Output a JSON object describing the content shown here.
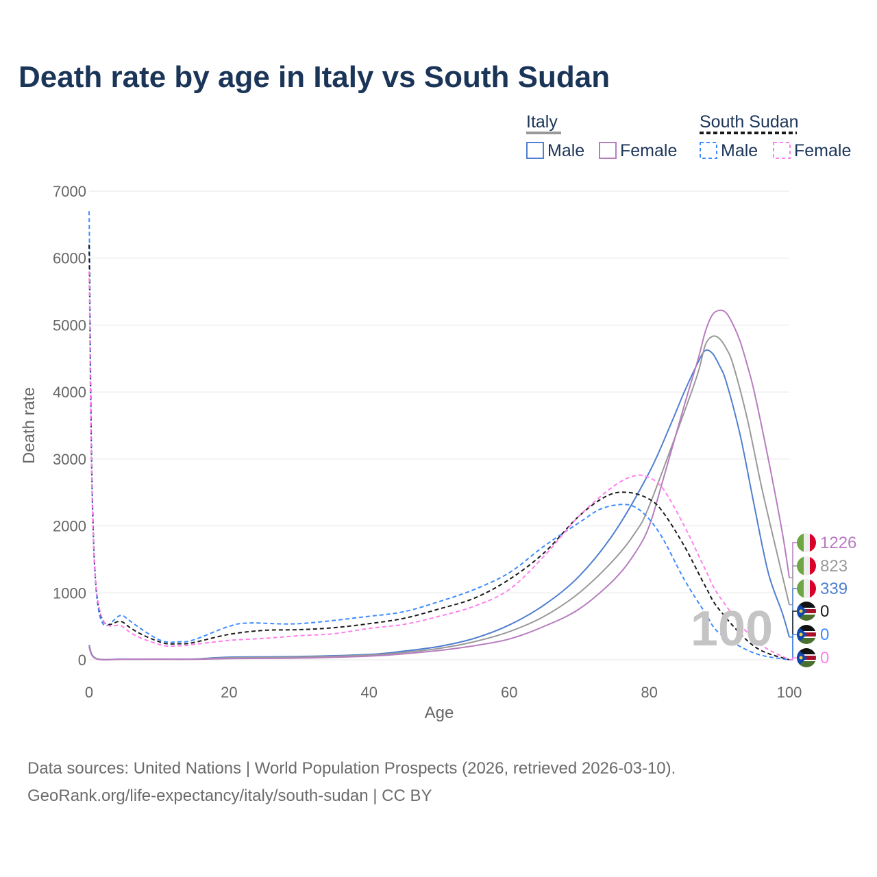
{
  "title": "Death rate by age in Italy vs South Sudan",
  "footer": {
    "line1": "Data sources: United Nations | World Population Prospects (2026, retrieved 2026-03-10).",
    "line2": "GeoRank.org/life-expectancy/italy/south-sudan | CC BY"
  },
  "legend": {
    "groups": [
      {
        "label": "Italy",
        "items": [
          "Male",
          "Female"
        ]
      },
      {
        "label": "South Sudan",
        "items": [
          "Male",
          "Female"
        ]
      }
    ]
  },
  "watermark_age": "100",
  "chart_data": {
    "type": "line",
    "title": "Death rate by age in Italy vs South Sudan",
    "xlabel": "Age",
    "ylabel": "Death rate",
    "xlim": [
      0,
      100
    ],
    "ylim": [
      0,
      7000
    ],
    "xticks": [
      "0",
      "20",
      "40",
      "60",
      "80",
      "100"
    ],
    "yticks": [
      "0",
      "1000",
      "2000",
      "3000",
      "4000",
      "5000",
      "6000",
      "7000"
    ],
    "grid": true,
    "series": [
      {
        "name": "Italy Male",
        "color": "#4f7fcf",
        "dash": false,
        "end_label": "339",
        "x": [
          0,
          1,
          5,
          10,
          15,
          20,
          30,
          40,
          45,
          50,
          55,
          60,
          65,
          70,
          75,
          80,
          83,
          85,
          87,
          88,
          89,
          90,
          91,
          93,
          95,
          97,
          99,
          100
        ],
        "y": [
          220,
          20,
          10,
          10,
          12,
          40,
          50,
          80,
          130,
          200,
          320,
          520,
          820,
          1250,
          1900,
          2800,
          3500,
          4000,
          4450,
          4620,
          4580,
          4400,
          4150,
          3350,
          2300,
          1300,
          700,
          339
        ]
      },
      {
        "name": "Italy Total",
        "color": "#999999",
        "dash": false,
        "end_label": "823",
        "x": [
          0,
          1,
          5,
          10,
          15,
          20,
          30,
          40,
          45,
          50,
          55,
          60,
          65,
          70,
          75,
          78,
          80,
          85,
          87,
          88,
          89,
          90,
          91,
          92,
          94,
          96,
          98,
          100
        ],
        "y": [
          200,
          18,
          9,
          9,
          10,
          30,
          40,
          70,
          110,
          170,
          270,
          420,
          650,
          1000,
          1500,
          1900,
          2300,
          3700,
          4300,
          4700,
          4830,
          4800,
          4650,
          4400,
          3600,
          2600,
          1700,
          823
        ]
      },
      {
        "name": "Italy Female",
        "color": "#b77cbf",
        "dash": false,
        "end_label": "1226",
        "x": [
          0,
          1,
          5,
          10,
          15,
          20,
          30,
          40,
          45,
          50,
          55,
          60,
          65,
          70,
          75,
          78,
          80,
          82,
          85,
          87,
          88,
          89,
          90,
          91,
          92,
          93,
          94,
          95,
          97,
          99,
          100
        ],
        "y": [
          190,
          16,
          8,
          8,
          8,
          18,
          25,
          55,
          90,
          140,
          210,
          310,
          500,
          760,
          1200,
          1600,
          2000,
          2700,
          3800,
          4500,
          4900,
          5150,
          5220,
          5180,
          5000,
          4750,
          4400,
          4000,
          3000,
          1900,
          1226
        ]
      },
      {
        "name": "South Sudan Male",
        "color": "#3d8bff",
        "dash": true,
        "end_label": "0",
        "x": [
          0,
          1,
          5,
          10,
          13,
          15,
          20,
          23,
          30,
          40,
          45,
          50,
          55,
          60,
          65,
          70,
          73,
          76,
          78,
          80,
          82,
          85,
          88,
          90,
          95,
          100
        ],
        "y": [
          6700,
          1050,
          650,
          300,
          270,
          300,
          500,
          550,
          540,
          650,
          720,
          870,
          1050,
          1300,
          1700,
          2050,
          2250,
          2320,
          2280,
          2100,
          1800,
          1200,
          700,
          400,
          100,
          0
        ]
      },
      {
        "name": "South Sudan Total",
        "color": "#1a1a1a",
        "dash": true,
        "end_label": "0",
        "x": [
          0,
          1,
          5,
          10,
          13,
          15,
          20,
          25,
          30,
          35,
          40,
          45,
          50,
          55,
          60,
          65,
          70,
          74,
          77,
          80,
          82,
          85,
          88,
          90,
          95,
          100
        ],
        "y": [
          6200,
          1100,
          550,
          270,
          240,
          260,
          380,
          440,
          450,
          480,
          540,
          620,
          760,
          920,
          1200,
          1600,
          2150,
          2450,
          2500,
          2400,
          2200,
          1700,
          1100,
          750,
          200,
          0
        ]
      },
      {
        "name": "South Sudan Female",
        "color": "#ff80ee",
        "dash": true,
        "end_label": "0",
        "x": [
          0,
          1,
          5,
          10,
          13,
          15,
          20,
          25,
          30,
          35,
          40,
          45,
          50,
          55,
          60,
          65,
          70,
          75,
          78,
          80,
          82,
          85,
          88,
          90,
          95,
          100
        ],
        "y": [
          5800,
          1100,
          480,
          230,
          210,
          230,
          290,
          320,
          360,
          390,
          470,
          530,
          650,
          800,
          1050,
          1550,
          2150,
          2600,
          2750,
          2720,
          2550,
          2000,
          1350,
          950,
          300,
          0
        ]
      }
    ]
  }
}
